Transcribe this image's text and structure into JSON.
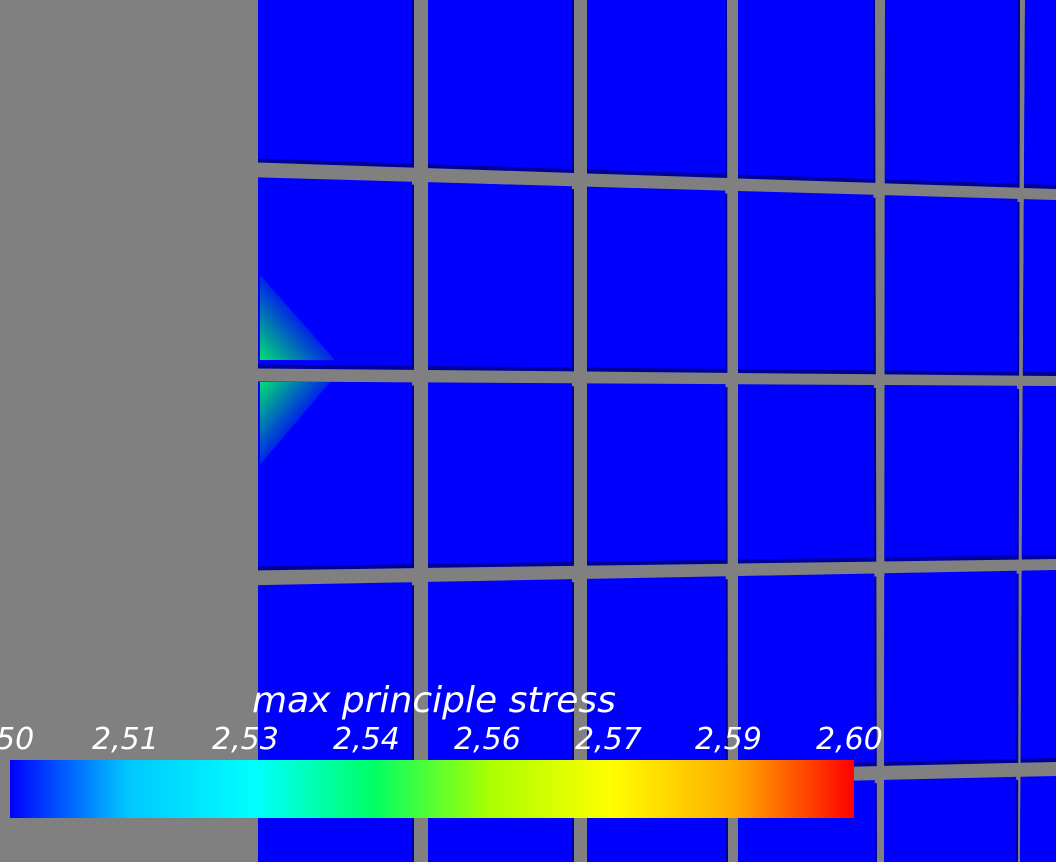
{
  "scene": {
    "background_color": "#808080",
    "cell_color": "#0000ff",
    "cell_edge_color": "#00009a",
    "hotspot_color": "#00e070"
  },
  "legend": {
    "title": "max principle stress",
    "ticks": [
      "50",
      "2,51",
      "2,53",
      "2,54",
      "2,56",
      "2,57",
      "2,59",
      "2,60"
    ],
    "gradient_colors": [
      "#0000ff",
      "#00c8ff",
      "#00ffff",
      "#00ff66",
      "#aaff00",
      "#ffff00",
      "#ffaa00",
      "#ff0000"
    ]
  }
}
